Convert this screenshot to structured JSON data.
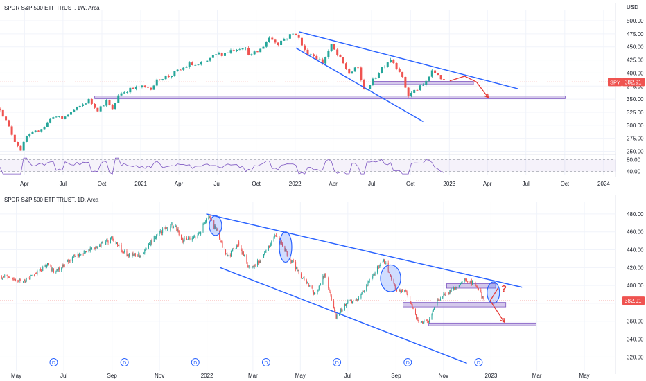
{
  "colors": {
    "up": "#26a69a",
    "down": "#ef5350",
    "trend": "#2962ff",
    "zone": "#b39ddb",
    "arrow": "#e53935",
    "rsi": "#7e57c2",
    "price_badge": "#ef5350",
    "grid": "#f0f3fa"
  },
  "chart_data": [
    {
      "type": "candlestick",
      "title": "SPDR S&P 500 ETF TRUST, 1W, Arca",
      "y_axis_label": "USD",
      "ylim": [
        248,
        516
      ],
      "yticks": [
        "500.00",
        "475.00",
        "450.00",
        "425.00",
        "400.00",
        "375.00",
        "350.00",
        "325.00",
        "300.00",
        "275.00",
        "250.00"
      ],
      "x_tick_labels": [
        "Apr",
        "Jul",
        "Oct",
        "2021",
        "Apr",
        "Jul",
        "Oct",
        "2022",
        "Apr",
        "Jul",
        "Oct",
        "2023",
        "Apr",
        "Jul",
        "Oct",
        "2024"
      ],
      "x_range": [
        "2020-02-03",
        "2024-01-29"
      ],
      "last_price_tag": {
        "symbol": "SPY",
        "value": "382.91"
      },
      "close_series": [
        [
          "2020-02-03",
          332
        ],
        [
          "2020-02-24",
          296
        ],
        [
          "2020-03-09",
          270
        ],
        [
          "2020-03-23",
          253
        ],
        [
          "2020-04-06",
          278
        ],
        [
          "2020-04-27",
          287
        ],
        [
          "2020-05-18",
          298
        ],
        [
          "2020-06-08",
          318
        ],
        [
          "2020-06-29",
          312
        ],
        [
          "2020-07-20",
          325
        ],
        [
          "2020-08-10",
          336
        ],
        [
          "2020-08-31",
          348
        ],
        [
          "2020-09-21",
          330
        ],
        [
          "2020-10-12",
          346
        ],
        [
          "2020-10-26",
          328
        ],
        [
          "2020-11-09",
          359
        ],
        [
          "2020-11-30",
          367
        ],
        [
          "2020-12-28",
          373
        ],
        [
          "2021-01-25",
          372
        ],
        [
          "2021-02-15",
          390
        ],
        [
          "2021-03-08",
          394
        ],
        [
          "2021-04-05",
          406
        ],
        [
          "2021-04-26",
          417
        ],
        [
          "2021-05-17",
          414
        ],
        [
          "2021-06-07",
          423
        ],
        [
          "2021-06-28",
          434
        ],
        [
          "2021-07-19",
          439
        ],
        [
          "2021-08-09",
          446
        ],
        [
          "2021-08-30",
          451
        ],
        [
          "2021-09-20",
          433
        ],
        [
          "2021-10-11",
          445
        ],
        [
          "2021-11-01",
          468
        ],
        [
          "2021-11-22",
          458
        ],
        [
          "2021-12-13",
          469
        ],
        [
          "2022-01-03",
          477
        ],
        [
          "2022-01-24",
          442
        ],
        [
          "2022-02-14",
          434
        ],
        [
          "2022-03-07",
          420
        ],
        [
          "2022-03-28",
          452
        ],
        [
          "2022-04-18",
          426
        ],
        [
          "2022-05-09",
          400
        ],
        [
          "2022-05-30",
          410
        ],
        [
          "2022-06-13",
          366
        ],
        [
          "2022-07-04",
          385
        ],
        [
          "2022-07-25",
          411
        ],
        [
          "2022-08-15",
          428
        ],
        [
          "2022-09-05",
          405
        ],
        [
          "2022-09-26",
          357
        ],
        [
          "2022-10-10",
          366
        ],
        [
          "2022-10-31",
          376
        ],
        [
          "2022-11-21",
          402
        ],
        [
          "2022-12-05",
          398
        ],
        [
          "2022-12-19",
          382.91
        ]
      ],
      "rsi": {
        "ylim": [
          30,
          90
        ],
        "levels": [
          "80.00",
          "40.00"
        ]
      },
      "annotations": {
        "trendlines": [
          {
            "from": [
              "2022-01-10",
              479
            ],
            "to": [
              "2023-06-12",
              370
            ]
          },
          {
            "from": [
              "2022-01-03",
              448
            ],
            "to": [
              "2022-10-31",
              307
            ]
          }
        ],
        "zones": [
          {
            "from": "2022-07-04",
            "to": "2023-02-27",
            "low": 378,
            "high": 384
          },
          {
            "from": "2020-09-14",
            "to": "2023-10-02",
            "low": 351,
            "high": 356
          }
        ],
        "arrows": [
          {
            "path": [
              [
                "2023-01-02",
                385
              ],
              [
                "2023-02-06",
                394
              ],
              [
                "2023-03-06",
                383
              ],
              [
                "2023-04-03",
                353
              ]
            ]
          }
        ]
      }
    },
    {
      "type": "candlestick",
      "title": "SPDR S&P 500 ETF TRUST, 1D, Arca",
      "ylim": [
        304,
        490
      ],
      "yticks": [
        "480.00",
        "460.00",
        "440.00",
        "420.00",
        "400.00",
        "380.00",
        "360.00",
        "340.00",
        "320.00"
      ],
      "x_tick_labels": [
        "May",
        "Jul",
        "Sep",
        "Nov",
        "2022",
        "Mar",
        "May",
        "Jul",
        "Sep",
        "Nov",
        "2023",
        "Mar",
        "May"
      ],
      "x_range": [
        "2021-04-10",
        "2023-06-10"
      ],
      "dividend_marker": "D",
      "dividends": [
        "2021-06-18",
        "2021-09-17",
        "2021-12-17",
        "2022-03-18",
        "2022-06-17",
        "2022-09-16",
        "2022-12-16"
      ],
      "last_price_tag": {
        "value": "382.91"
      },
      "close_series": [
        [
          "2021-04-10",
          410
        ],
        [
          "2021-05-12",
          405
        ],
        [
          "2021-06-10",
          423
        ],
        [
          "2021-06-20",
          415
        ],
        [
          "2021-07-15",
          433
        ],
        [
          "2021-08-15",
          445
        ],
        [
          "2021-09-01",
          452
        ],
        [
          "2021-09-20",
          434
        ],
        [
          "2021-10-10",
          434
        ],
        [
          "2021-10-30",
          459
        ],
        [
          "2021-11-20",
          468
        ],
        [
          "2021-12-01",
          450
        ],
        [
          "2021-12-20",
          455
        ],
        [
          "2022-01-03",
          477
        ],
        [
          "2022-01-15",
          458
        ],
        [
          "2022-01-27",
          431
        ],
        [
          "2022-02-10",
          447
        ],
        [
          "2022-02-24",
          420
        ],
        [
          "2022-03-10",
          427
        ],
        [
          "2022-03-30",
          458
        ],
        [
          "2022-04-13",
          437
        ],
        [
          "2022-05-01",
          411
        ],
        [
          "2022-05-20",
          390
        ],
        [
          "2022-06-01",
          412
        ],
        [
          "2022-06-16",
          365
        ],
        [
          "2022-07-01",
          382
        ],
        [
          "2022-07-15",
          385
        ],
        [
          "2022-08-01",
          410
        ],
        [
          "2022-08-16",
          430
        ],
        [
          "2022-09-01",
          395
        ],
        [
          "2022-09-13",
          393
        ],
        [
          "2022-09-30",
          358
        ],
        [
          "2022-10-13",
          360
        ],
        [
          "2022-10-25",
          384
        ],
        [
          "2022-11-10",
          394
        ],
        [
          "2022-11-30",
          407
        ],
        [
          "2022-12-13",
          401
        ],
        [
          "2022-12-23",
          382.91
        ]
      ],
      "annotations": {
        "trendlines": [
          {
            "from": [
              "2021-12-31",
              480
            ],
            "to": [
              "2023-02-10",
              398
            ]
          },
          {
            "from": [
              "2022-01-18",
              420
            ],
            "to": [
              "2022-12-01",
              313
            ]
          }
        ],
        "zones": [
          {
            "from": "2022-09-10",
            "to": "2023-01-20",
            "low": 376,
            "high": 381
          },
          {
            "from": "2022-11-05",
            "to": "2023-01-07",
            "low": 397,
            "high": 402
          },
          {
            "from": "2022-10-13",
            "to": "2023-02-28",
            "low": 355,
            "high": 358
          }
        ],
        "circles": [
          {
            "center": [
              "2022-01-12",
              467
            ],
            "rx_days": 8,
            "ry": 11
          },
          {
            "center": [
              "2022-04-12",
              443
            ],
            "rx_days": 8,
            "ry": 17
          },
          {
            "center": [
              "2022-08-25",
              408
            ],
            "rx_days": 13,
            "ry": 15
          },
          {
            "center": [
              "2023-01-04",
              392
            ],
            "rx_days": 8,
            "ry": 12
          }
        ],
        "arrows": [
          {
            "path": [
              [
                "2023-01-10",
                397
              ],
              [
                "2022-12-31",
                383
              ],
              [
                "2023-01-18",
                359
              ]
            ]
          }
        ],
        "question_mark": {
          "text": "?",
          "at": [
            "2023-01-14",
            393
          ]
        }
      }
    }
  ]
}
